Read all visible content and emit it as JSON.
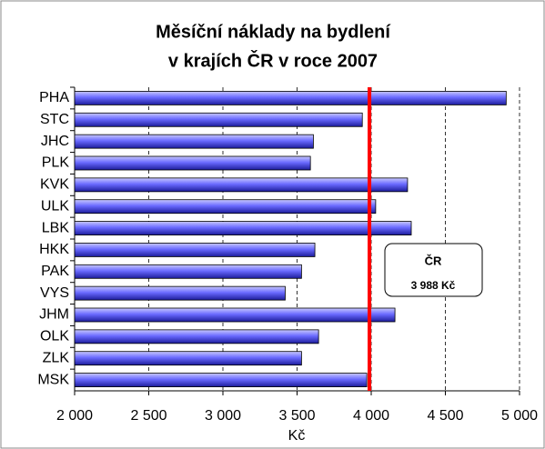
{
  "chart_data": {
    "type": "bar",
    "orientation": "horizontal",
    "title": [
      "Měsíční náklady na bydlení",
      "v krajích ČR v roce 2007"
    ],
    "categories": [
      "PHA",
      "STC",
      "JHC",
      "PLK",
      "KVK",
      "ULK",
      "LBK",
      "HKK",
      "PAK",
      "VYS",
      "JHM",
      "OLK",
      "ZLK",
      "MSK"
    ],
    "values": [
      4910,
      3940,
      3610,
      3590,
      4245,
      4030,
      4270,
      3620,
      3530,
      3420,
      4160,
      3645,
      3530,
      3970
    ],
    "color": "#3a3ad0",
    "xlabel": "Kč",
    "xlim": [
      2000,
      5000
    ],
    "xticks": [
      {
        "value": 2000,
        "label": "2 000"
      },
      {
        "value": 2500,
        "label": "2 500"
      },
      {
        "value": 3000,
        "label": "3 000"
      },
      {
        "value": 3500,
        "label": "3 500"
      },
      {
        "value": 4000,
        "label": "4 000"
      },
      {
        "value": 4500,
        "label": "4 500"
      },
      {
        "value": 5000,
        "label": "5 000"
      }
    ],
    "grid": true,
    "reference": {
      "name": "ČR",
      "value": 3988,
      "label": "3 988 Kč",
      "color": "#ff0000"
    }
  }
}
